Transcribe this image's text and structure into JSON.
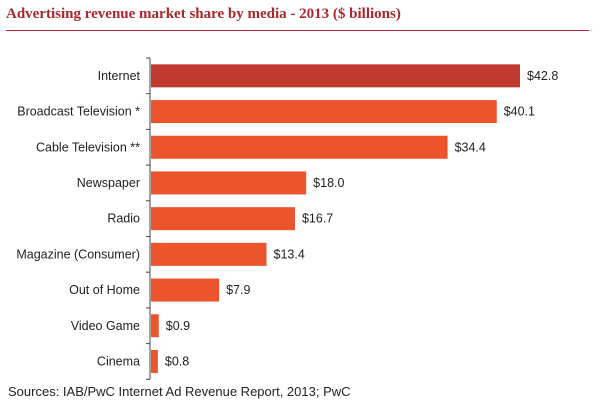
{
  "title": "Advertising revenue market share by media - 2013 ($ billions)",
  "source": "Sources: IAB/PwC Internet Ad Revenue Report, 2013; PwC",
  "colors": {
    "highlight": "#c0392f",
    "bar": "#ec542c",
    "axis": "#444444",
    "title": "#a9272c"
  },
  "chart_data": {
    "type": "bar",
    "orientation": "horizontal",
    "title": "Advertising revenue market share by media - 2013 ($ billions)",
    "categories": [
      "Internet",
      "Broadcast Television *",
      "Cable Television **",
      "Newspaper",
      "Radio",
      "Magazine (Consumer)",
      "Out of Home",
      "Video Game",
      "Cinema"
    ],
    "values": [
      42.8,
      40.1,
      34.4,
      18.0,
      16.7,
      13.4,
      7.9,
      0.9,
      0.8
    ],
    "value_labels": [
      "$42.8",
      "$40.1",
      "$34.4",
      "$18.0",
      "$16.7",
      "$13.4",
      "$7.9",
      "$0.9",
      "$0.8"
    ],
    "highlight_index": 0,
    "xlim": [
      0,
      45
    ],
    "grid": false,
    "xlabel": "",
    "ylabel": ""
  }
}
